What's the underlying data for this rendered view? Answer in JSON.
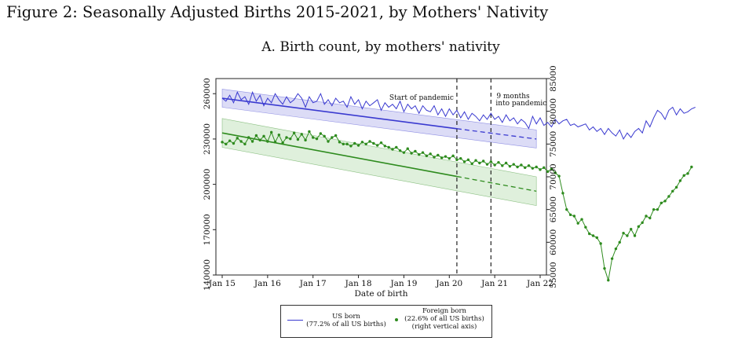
{
  "figure_title": "Figure 2: Seasonally Adjusted Births 2015-2021, by Mothers' Nativity",
  "panel_title": "A. Birth count, by mothers' nativity",
  "chart_data": {
    "type": "line",
    "xlabel": "Date of birth",
    "x_ticks": [
      "Jan 15",
      "Jan 16",
      "Jan 17",
      "Jan 18",
      "Jan 19",
      "Jan 20",
      "Jan 21",
      "Jan 22"
    ],
    "x_range": [
      "2015-01",
      "2022-01"
    ],
    "left_axis": {
      "range": [
        140000,
        270000
      ],
      "ticks": [
        140000,
        170000,
        200000,
        230000,
        260000
      ]
    },
    "right_axis": {
      "range": [
        55000,
        85000
      ],
      "ticks": [
        55000,
        60000,
        65000,
        70000,
        75000,
        80000,
        85000
      ]
    },
    "annotations": [
      {
        "text": "Start of pandemic",
        "x": "2020-03"
      },
      {
        "text": "9 months",
        "text2": "into pandemic",
        "x": "2020-12"
      }
    ],
    "series": [
      {
        "name": "US born",
        "legend": [
          "US born",
          "(77.2% of all US births)"
        ],
        "axis": "left",
        "color": "#3a3ad0",
        "band_color": "#dcdcf6",
        "trend": {
          "start": [
            "2015-01",
            257000
          ],
          "end": [
            "2021-12",
            230000
          ],
          "band_halfwidth": 6000
        },
        "values": [
          257000,
          255000,
          259000,
          254000,
          261000,
          256000,
          258000,
          253000,
          261000,
          255000,
          259000,
          252000,
          257000,
          254000,
          260000,
          256000,
          253000,
          258000,
          254000,
          256000,
          260000,
          257000,
          251000,
          258000,
          254000,
          255000,
          260000,
          253000,
          256000,
          252000,
          257000,
          254000,
          255000,
          251000,
          258000,
          253000,
          256000,
          250000,
          255000,
          252000,
          254000,
          256000,
          249000,
          254000,
          251000,
          253000,
          250000,
          255000,
          248000,
          253000,
          250000,
          252000,
          247000,
          252000,
          249000,
          248000,
          252000,
          246000,
          250000,
          245000,
          250000,
          246000,
          249000,
          244000,
          248000,
          243000,
          247000,
          245000,
          242000,
          246000,
          243000,
          247000,
          243000,
          245000,
          241000,
          246000,
          242000,
          244000,
          240000,
          243000,
          241000,
          237000,
          245000,
          240000,
          244000,
          239000,
          241000,
          238000,
          243000,
          240000,
          242000,
          243000,
          239000,
          240000,
          238000,
          239000,
          240000,
          236000,
          238000,
          235000,
          237000,
          233000,
          237000,
          234000,
          232000,
          236000,
          230000,
          234000,
          231000,
          235000,
          237000,
          234000,
          242000,
          238000,
          244000,
          249000,
          247000,
          243000,
          249000,
          251000,
          246000,
          250000,
          247000,
          248000,
          250000,
          251000
        ]
      },
      {
        "name": "Foreign born",
        "legend": [
          "Foreign born",
          "(22.6% of all US births)",
          "(right vertical axis)"
        ],
        "axis": "right",
        "color": "#2e8b1e",
        "band_color": "#dff0dc",
        "trend": {
          "start": [
            "2015-01",
            76700
          ],
          "end": [
            "2021-12",
            67800
          ],
          "band_halfwidth": 2200
        },
        "values": [
          75300,
          75000,
          75500,
          75100,
          75900,
          75400,
          75000,
          76000,
          75400,
          76300,
          75600,
          76200,
          75400,
          76800,
          75300,
          76400,
          75200,
          76000,
          75800,
          76700,
          75700,
          76500,
          75600,
          76900,
          76000,
          75800,
          76600,
          76200,
          75400,
          76000,
          76300,
          75300,
          75000,
          75000,
          74700,
          75100,
          74800,
          75300,
          75000,
          75400,
          75100,
          74800,
          75200,
          74700,
          74500,
          74200,
          74500,
          74000,
          73700,
          74300,
          73600,
          73900,
          73400,
          73700,
          73200,
          73500,
          73000,
          73300,
          72900,
          73100,
          72800,
          73200,
          72600,
          72800,
          72300,
          72600,
          72000,
          72500,
          72100,
          72400,
          71900,
          72300,
          71800,
          72200,
          71700,
          72100,
          71600,
          71900,
          71500,
          71800,
          71400,
          71700,
          71300,
          71500,
          71100,
          71400,
          70800,
          71200,
          70600,
          70100,
          67500,
          65000,
          64200,
          64000,
          62900,
          63500,
          62300,
          61300,
          61000,
          60700,
          59800,
          56000,
          54200,
          57500,
          59000,
          60000,
          61400,
          61000,
          62000,
          61000,
          62400,
          63000,
          64000,
          63700,
          65000,
          65000,
          66000,
          66300,
          67000,
          67800,
          68400,
          69400,
          70200,
          70500,
          71500
        ]
      }
    ]
  }
}
